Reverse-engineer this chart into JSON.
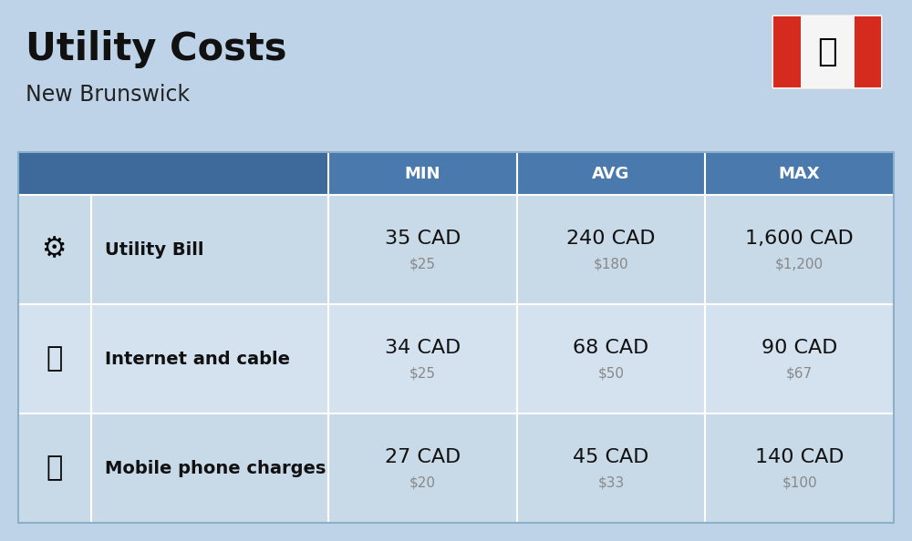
{
  "title": "Utility Costs",
  "subtitle": "New Brunswick",
  "background_color": "#bed3e8",
  "header_bg_color": "#4a7aad",
  "header_text_color": "#ffffff",
  "icon_col_bg": "#4a7aad",
  "row_bg_color_1": "#c8d9e8",
  "row_bg_color_2": "#d4e2ef",
  "border_color": "#a0b8cc",
  "col_headers": [
    "MIN",
    "AVG",
    "MAX"
  ],
  "rows": [
    {
      "label": "Utility Bill",
      "min_cad": "35 CAD",
      "min_usd": "$25",
      "avg_cad": "240 CAD",
      "avg_usd": "$180",
      "max_cad": "1,600 CAD",
      "max_usd": "$1,200"
    },
    {
      "label": "Internet and cable",
      "min_cad": "34 CAD",
      "min_usd": "$25",
      "avg_cad": "68 CAD",
      "avg_usd": "$50",
      "max_cad": "90 CAD",
      "max_usd": "$67"
    },
    {
      "label": "Mobile phone charges",
      "min_cad": "27 CAD",
      "min_usd": "$20",
      "avg_cad": "45 CAD",
      "avg_usd": "$33",
      "max_cad": "140 CAD",
      "max_usd": "$100"
    }
  ],
  "title_fontsize": 30,
  "subtitle_fontsize": 17,
  "header_fontsize": 13,
  "row_label_fontsize": 14,
  "row_cad_fontsize": 16,
  "row_usd_fontsize": 11,
  "flag_red": "#d52b1e",
  "flag_white": "#f5f5f5"
}
